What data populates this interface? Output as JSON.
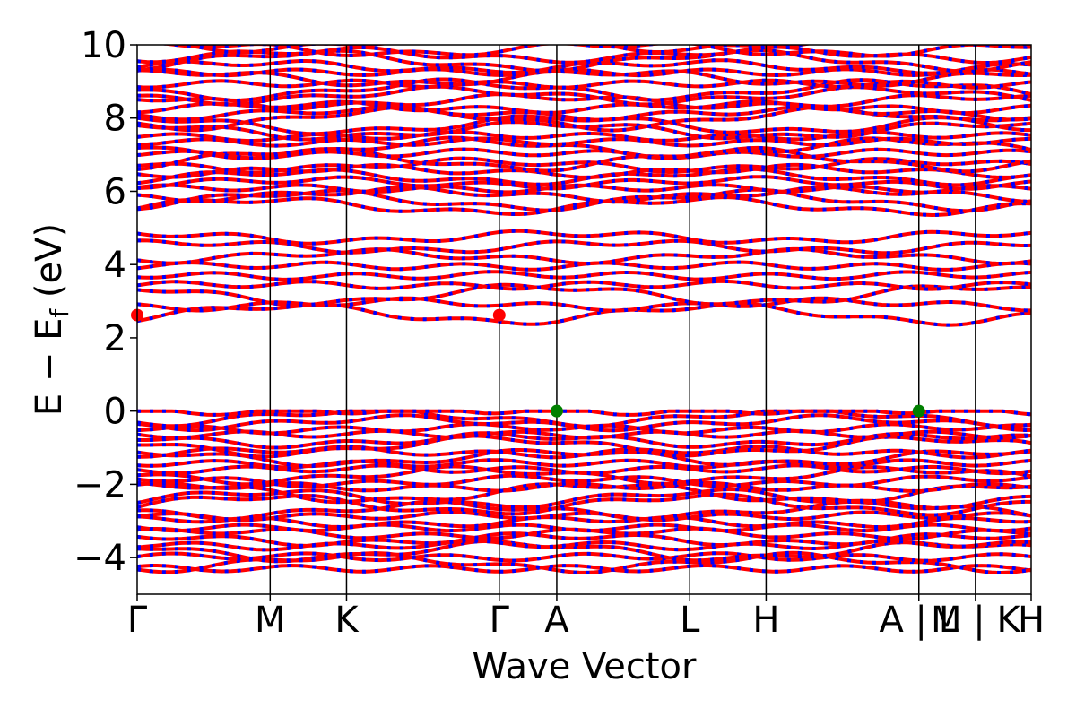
{
  "chart_data": {
    "type": "line",
    "xlabel": "Wave Vector",
    "ylabel_main": "E − E",
    "ylabel_sub": "f",
    "ylabel_unit": " (eV)",
    "ylim": [
      -5,
      10
    ],
    "yticks": [
      {
        "value": -4,
        "label": "−4"
      },
      {
        "value": -2,
        "label": "−2"
      },
      {
        "value": 0,
        "label": "0"
      },
      {
        "value": 2,
        "label": "2"
      },
      {
        "value": 4,
        "label": "4"
      },
      {
        "value": 6,
        "label": "6"
      },
      {
        "value": 8,
        "label": "8"
      },
      {
        "value": 10,
        "label": "10"
      }
    ],
    "kpath_labels": [
      {
        "pos": 0.0,
        "label": "Γ"
      },
      {
        "pos": 1.48,
        "label": "M"
      },
      {
        "pos": 2.33,
        "label": "K"
      },
      {
        "pos": 4.03,
        "label": "Γ"
      },
      {
        "pos": 4.67,
        "label": "A"
      },
      {
        "pos": 6.15,
        "label": "L"
      },
      {
        "pos": 7.0,
        "label": "H"
      },
      {
        "pos": 8.7,
        "label": "A | L"
      },
      {
        "pos": 9.33,
        "label": "M | K"
      },
      {
        "pos": 9.95,
        "label": "H"
      }
    ],
    "x_range": [
      0,
      9.95
    ],
    "band_colors": {
      "spin_up": "#ff0000",
      "spin_down": "#0000ff"
    },
    "cbm_points": [
      {
        "x": 0.0,
        "y": 2.62
      },
      {
        "x": 4.03,
        "y": 2.62
      }
    ],
    "vbm_points": [
      {
        "x": 4.67,
        "y": 0.0
      },
      {
        "x": 8.7,
        "y": 0.0
      }
    ],
    "cbm_color": "#ff0000",
    "vbm_color": "#008000",
    "grid": false
  }
}
